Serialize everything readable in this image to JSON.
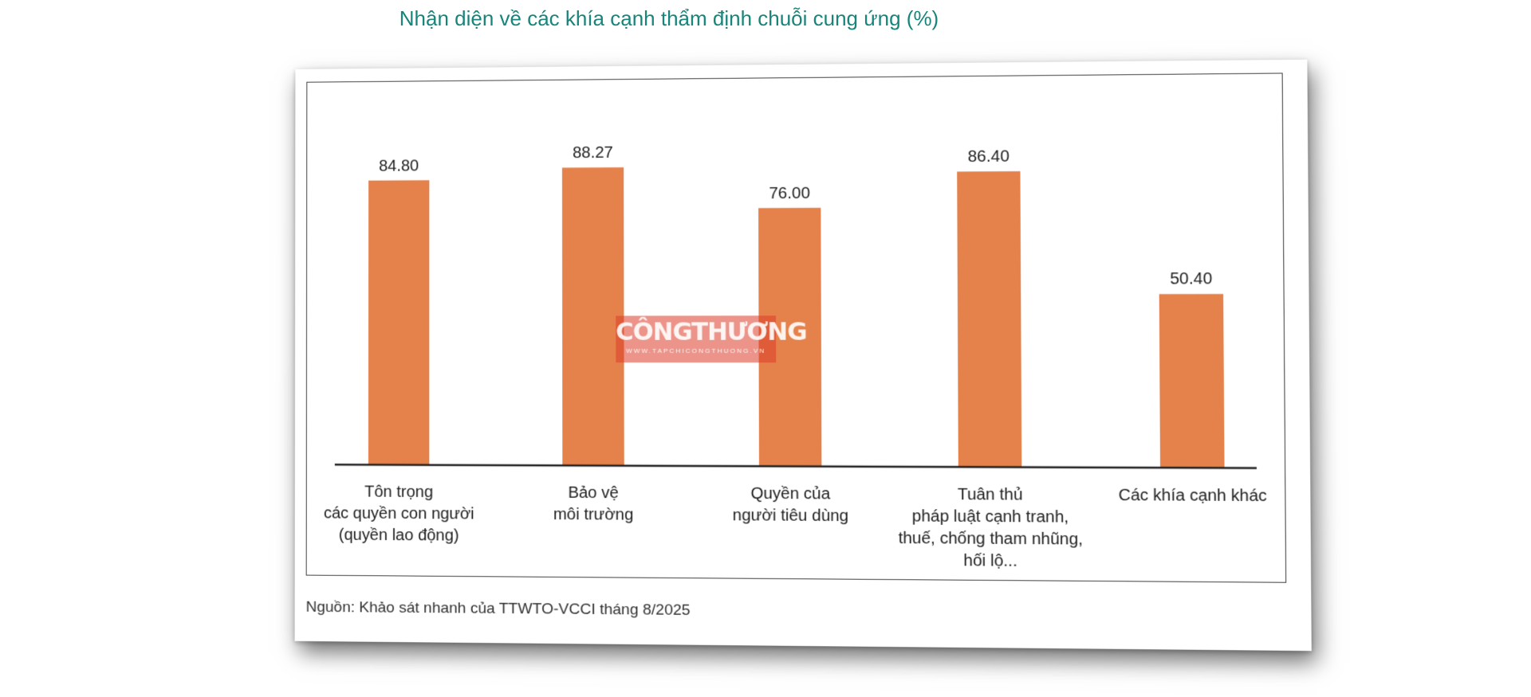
{
  "title": "Nhận diện về các khía cạnh thẩm định chuỗi cung ứng (%)",
  "source": "Nguồn: Khảo sát nhanh của TTWTO-VCCI tháng 8/2025",
  "watermark": {
    "main": "CÔNGTHƯƠNG",
    "sub": "WWW.TAPCHICONGTHUONG.VN"
  },
  "colors": {
    "bar": "#e5814b",
    "title": "#17857a",
    "axis": "#222222"
  },
  "chart_data": {
    "type": "bar",
    "categories": [
      [
        "Tôn trọng",
        "các quyền con người",
        "(quyền lao động)"
      ],
      [
        "Bảo vệ",
        "môi trường"
      ],
      [
        "Quyền của",
        "người tiêu dùng"
      ],
      [
        "Tuân thủ",
        "pháp luật cạnh tranh,",
        "thuế, chống tham nhũng,",
        "hối lộ..."
      ],
      [
        "Các khía cạnh khác"
      ]
    ],
    "values": [
      84.8,
      88.27,
      76.0,
      86.4,
      50.4
    ],
    "value_labels": [
      "84.80",
      "88.27",
      "76.00",
      "86.40",
      "50.40"
    ],
    "ylim": [
      0,
      100
    ],
    "grid": false,
    "legend": "none"
  }
}
